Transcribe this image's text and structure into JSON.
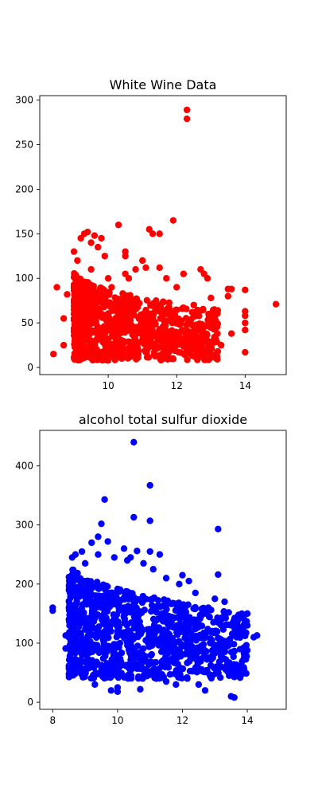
{
  "chart_data": [
    {
      "type": "scatter",
      "title": "White Wine Data",
      "xlabel": "",
      "ylabel": "",
      "xlim": [
        8.0,
        15.2
      ],
      "ylim": [
        -8,
        305
      ],
      "xticks": [
        10,
        12,
        14
      ],
      "yticks": [
        0,
        50,
        100,
        150,
        200,
        250,
        300
      ],
      "grid": false,
      "color": "#ff0000",
      "points": [
        [
          8.4,
          15
        ],
        [
          8.5,
          90
        ],
        [
          8.7,
          25
        ],
        [
          8.7,
          55
        ],
        [
          8.8,
          82
        ],
        [
          9.0,
          130
        ],
        [
          9.1,
          120
        ],
        [
          9.2,
          145
        ],
        [
          9.2,
          98
        ],
        [
          9.3,
          150
        ],
        [
          9.4,
          152
        ],
        [
          9.5,
          140
        ],
        [
          9.5,
          110
        ],
        [
          9.6,
          148
        ],
        [
          9.7,
          135
        ],
        [
          9.8,
          145
        ],
        [
          9.9,
          125
        ],
        [
          9.0,
          60
        ],
        [
          9.0,
          40
        ],
        [
          9.1,
          20
        ],
        [
          9.3,
          70
        ],
        [
          9.5,
          30
        ],
        [
          9.7,
          85
        ],
        [
          9.9,
          55
        ],
        [
          10.0,
          100
        ],
        [
          10.1,
          90
        ],
        [
          10.2,
          70
        ],
        [
          10.3,
          160
        ],
        [
          10.5,
          130
        ],
        [
          10.5,
          125
        ],
        [
          10.5,
          105
        ],
        [
          10.6,
          100
        ],
        [
          10.8,
          110
        ],
        [
          11.0,
          120
        ],
        [
          11.1,
          112
        ],
        [
          11.2,
          155
        ],
        [
          11.3,
          150
        ],
        [
          11.5,
          150
        ],
        [
          11.5,
          112
        ],
        [
          11.7,
          100
        ],
        [
          11.9,
          165
        ],
        [
          12.0,
          90
        ],
        [
          12.2,
          105
        ],
        [
          12.3,
          289
        ],
        [
          12.3,
          279
        ],
        [
          12.5,
          70
        ],
        [
          12.7,
          110
        ],
        [
          12.8,
          105
        ],
        [
          12.9,
          100
        ],
        [
          13.0,
          78
        ],
        [
          13.1,
          65
        ],
        [
          13.5,
          88
        ],
        [
          13.5,
          80
        ],
        [
          13.6,
          88
        ],
        [
          14.0,
          87
        ],
        [
          14.0,
          63
        ],
        [
          14.0,
          58
        ],
        [
          14.0,
          50
        ],
        [
          14.0,
          42
        ],
        [
          14.0,
          17
        ],
        [
          14.9,
          71
        ],
        [
          13.6,
          38
        ],
        [
          13.3,
          25
        ],
        [
          13.2,
          18
        ],
        [
          13.1,
          12
        ],
        [
          12.9,
          30
        ],
        [
          12.6,
          45
        ],
        [
          12.3,
          20
        ],
        [
          11.8,
          60
        ],
        [
          11.4,
          75
        ],
        [
          11.0,
          40
        ],
        [
          10.7,
          15
        ],
        [
          10.4,
          10
        ],
        [
          10.0,
          8
        ],
        [
          9.6,
          12
        ],
        [
          9.2,
          10
        ],
        [
          9.4,
          45
        ],
        [
          9.8,
          35
        ],
        [
          10.2,
          25
        ],
        [
          10.6,
          50
        ]
      ],
      "cluster": {
        "x_range": [
          9.0,
          13.2
        ],
        "y_range": [
          8,
          110
        ],
        "count": 900,
        "note": "dense cloud"
      }
    },
    {
      "type": "scatter",
      "title": "alcohol total sulfur dioxide",
      "xlabel": "",
      "ylabel": "",
      "xlim": [
        7.6,
        15.2
      ],
      "ylim": [
        -12,
        460
      ],
      "xticks": [
        8,
        10,
        12,
        14
      ],
      "yticks": [
        0,
        100,
        200,
        300,
        400
      ],
      "grid": false,
      "color": "#0000ff",
      "points": [
        [
          8.0,
          160
        ],
        [
          8.0,
          155
        ],
        [
          8.4,
          113
        ],
        [
          8.4,
          91
        ],
        [
          8.6,
          245
        ],
        [
          8.7,
          250
        ],
        [
          8.9,
          255
        ],
        [
          9.0,
          80
        ],
        [
          9.2,
          270
        ],
        [
          9.4,
          280
        ],
        [
          9.5,
          302
        ],
        [
          9.6,
          343
        ],
        [
          9.7,
          272
        ],
        [
          9.3,
          30
        ],
        [
          9.5,
          55
        ],
        [
          9.8,
          20
        ],
        [
          10.0,
          18
        ],
        [
          10.0,
          25
        ],
        [
          10.2,
          260
        ],
        [
          10.4,
          245
        ],
        [
          10.5,
          440
        ],
        [
          10.5,
          313
        ],
        [
          10.6,
          256
        ],
        [
          10.7,
          22
        ],
        [
          11.0,
          367
        ],
        [
          11.0,
          307
        ],
        [
          11.0,
          255
        ],
        [
          11.3,
          250
        ],
        [
          11.2,
          40
        ],
        [
          11.5,
          35
        ],
        [
          11.8,
          30
        ],
        [
          12.0,
          215
        ],
        [
          12.2,
          205
        ],
        [
          12.5,
          30
        ],
        [
          12.7,
          20
        ],
        [
          13.0,
          175
        ],
        [
          13.1,
          293
        ],
        [
          13.1,
          216
        ],
        [
          13.3,
          170
        ],
        [
          13.5,
          10
        ],
        [
          13.6,
          8
        ],
        [
          13.5,
          55
        ],
        [
          13.9,
          75
        ],
        [
          14.0,
          150
        ],
        [
          14.0,
          130
        ],
        [
          14.0,
          88
        ],
        [
          14.2,
          110
        ],
        [
          14.3,
          113
        ],
        [
          13.7,
          125
        ],
        [
          13.2,
          140
        ],
        [
          12.8,
          160
        ],
        [
          12.4,
          185
        ],
        [
          11.9,
          200
        ],
        [
          11.5,
          210
        ],
        [
          11.1,
          225
        ],
        [
          10.8,
          235
        ],
        [
          10.3,
          240
        ],
        [
          9.9,
          245
        ],
        [
          9.4,
          250
        ],
        [
          9.0,
          235
        ]
      ],
      "cluster": {
        "x_range": [
          8.5,
          14.0
        ],
        "y_range": [
          40,
          240
        ],
        "count": 1100,
        "note": "dense cloud"
      }
    }
  ]
}
